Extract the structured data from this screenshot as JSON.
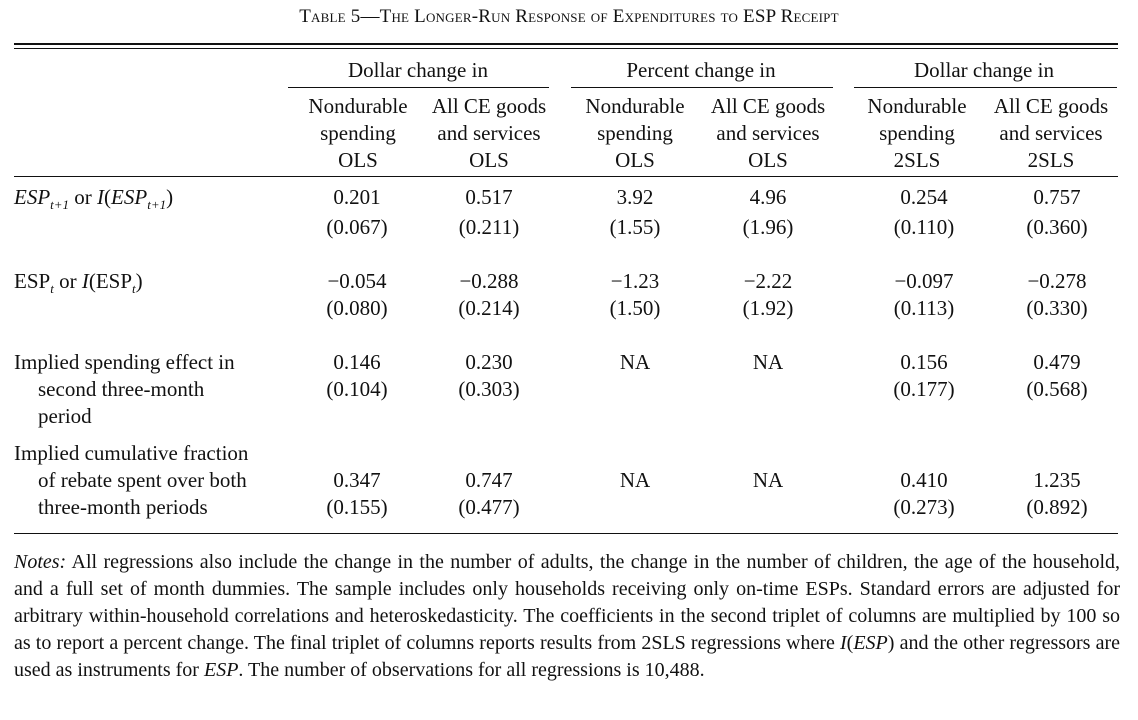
{
  "table": {
    "title": "Table 5—The Longer-Run Response of Expenditures to ESP Receipt",
    "groups": [
      "Dollar change in",
      "Percent change in",
      "Dollar change in"
    ],
    "columns": [
      {
        "line1": "Nondurable",
        "line2": "spending",
        "line3": "OLS"
      },
      {
        "line1": "All CE goods",
        "line2": "and services",
        "line3": "OLS"
      },
      {
        "line1": "Nondurable",
        "line2": "spending",
        "line3": "OLS"
      },
      {
        "line1": "All CE goods",
        "line2": "and services",
        "line3": "OLS"
      },
      {
        "line1": "Nondurable",
        "line2": "spending",
        "line3": "2SLS"
      },
      {
        "line1": "All CE goods",
        "line2": "and services",
        "line3": "2SLS"
      }
    ],
    "rows": [
      {
        "label": {
          "esp": "ESP",
          "sub": "t+1",
          "or": "or",
          "i": "I",
          "open": "(",
          "close": ")"
        },
        "values": [
          "0.201",
          "0.517",
          "3.92",
          "4.96",
          "0.254",
          "0.757"
        ],
        "se": [
          "(0.067)",
          "(0.211)",
          "(1.55)",
          "(1.96)",
          "(0.110)",
          "(0.360)"
        ]
      },
      {
        "label": {
          "esp": "ESP",
          "sub": "t",
          "or": "or",
          "i": "I",
          "open": "(",
          "close": ")"
        },
        "values": [
          "−0.054",
          "−0.288",
          "−1.23",
          "−2.22",
          "−0.097",
          "−0.278"
        ],
        "se": [
          "(0.080)",
          "(0.214)",
          "(1.50)",
          "(1.92)",
          "(0.113)",
          "(0.330)"
        ]
      },
      {
        "label_lines": [
          "Implied spending effect in",
          "second three-month",
          "period"
        ],
        "values": [
          "0.146",
          "0.230",
          "NA",
          "NA",
          "0.156",
          "0.479"
        ],
        "se": [
          "(0.104)",
          "(0.303)",
          "",
          "",
          "(0.177)",
          "(0.568)"
        ]
      },
      {
        "label_lines": [
          "Implied cumulative fraction",
          "of rebate spent over both",
          "three-month periods"
        ],
        "values": [
          "0.347",
          "0.747",
          "NA",
          "NA",
          "0.410",
          "1.235"
        ],
        "se": [
          "(0.155)",
          "(0.477)",
          "",
          "",
          "(0.273)",
          "(0.892)"
        ]
      }
    ]
  },
  "notes": {
    "label": "Notes:",
    "text1": " All regressions also include the change in the number of adults, the change in the number of children, the age of the household, and a full set of month dummies. The sample includes only households receiving only on-time ESPs. Standard errors are adjusted for arbitrary within-household correlations and heteroskedasticity. The coefficients in the second triplet of columns are multiplied by 100 so as to report a percent change. The final triplet of columns reports results from 2SLS regressions where ",
    "i_var": "I",
    "paren_open": "(",
    "esp_var": "ESP",
    "paren_close": ")",
    "text2": " and the other regressors are used as instruments for ",
    "esp_var2": "ESP",
    "text3": ". The number of observations for all regressions is 10,488."
  }
}
